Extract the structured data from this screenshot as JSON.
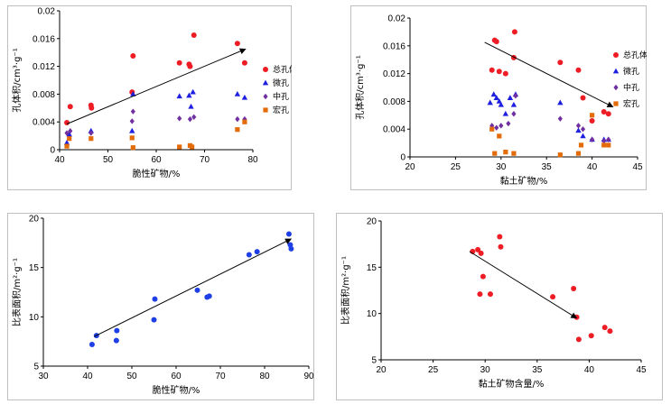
{
  "colors": {
    "total": "#ee1c24",
    "micro": "#1f1fe0",
    "meso": "#7030a0",
    "macro": "#e36c09",
    "ssa": "#1f3fe6",
    "ssa2": "#ee1c24",
    "frame": "#bfbfbf"
  },
  "chart_data": [
    {
      "id": "a",
      "type": "scatter",
      "xlabel": "脆性矿物/%",
      "ylabel": "孔体积/cm³·g⁻¹",
      "xlim": [
        40,
        80
      ],
      "ylim": [
        0,
        0.02
      ],
      "xticks": [
        "40",
        "50",
        "60",
        "70",
        "80"
      ],
      "yticks": [
        "0",
        "0.004",
        "0.008",
        "0.012",
        "0.016",
        "0.02"
      ],
      "legend": [
        "总孔体积",
        "微孔",
        "中孔",
        "宏孔"
      ],
      "series": [
        {
          "name": "总孔体积",
          "marker": "circle",
          "x": [
            41.5,
            42.2,
            46.5,
            46.6,
            55.0,
            55.2,
            64.8,
            66.8,
            67.0,
            67.8,
            76.8,
            78.3
          ],
          "y": [
            0.0039,
            0.0062,
            0.0064,
            0.006,
            0.0083,
            0.0135,
            0.0125,
            0.0123,
            0.012,
            0.0165,
            0.0153,
            0.0125
          ]
        },
        {
          "name": "微孔",
          "marker": "triangle",
          "x": [
            41.5,
            42.0,
            46.5,
            55.0,
            55.2,
            64.8,
            66.8,
            67.2,
            67.6,
            76.8,
            78.3
          ],
          "y": [
            0.001,
            0.0022,
            0.0027,
            0.0027,
            0.008,
            0.0077,
            0.0078,
            0.0062,
            0.0083,
            0.008,
            0.0075
          ]
        },
        {
          "name": "中孔",
          "marker": "diamond",
          "x": [
            41.5,
            42.2,
            46.5,
            55.0,
            55.2,
            64.8,
            67.0,
            67.8,
            76.8,
            78.3
          ],
          "y": [
            0.0024,
            0.0027,
            0.0024,
            0.0041,
            0.0055,
            0.0045,
            0.0044,
            0.0047,
            0.0044,
            0.0044
          ]
        },
        {
          "name": "宏孔",
          "marker": "square",
          "x": [
            41.5,
            42.0,
            46.5,
            55.0,
            55.2,
            64.8,
            67.0,
            67.4,
            76.8,
            78.3
          ],
          "y": [
            0.0005,
            0.0016,
            0.0016,
            0.0017,
            0.0003,
            0.0004,
            0.0006,
            0.0004,
            0.0029,
            0.004
          ]
        }
      ],
      "arrow": {
        "from": [
          41.5,
          0.0037
        ],
        "to": [
          78.5,
          0.0145
        ]
      }
    },
    {
      "id": "b",
      "type": "scatter",
      "xlabel": "黏土矿物/%",
      "ylabel": "孔体积/cm³·g⁻¹",
      "xlim": [
        20,
        45
      ],
      "ylim": [
        0,
        0.02
      ],
      "xticks": [
        "20",
        "25",
        "30",
        "35",
        "40",
        "45"
      ],
      "yticks": [
        "0",
        "0.004",
        "0.008",
        "0.012",
        "0.016",
        "0.02"
      ],
      "legend": [
        "总孔体积",
        "微孔",
        "中孔",
        "宏孔"
      ],
      "series": [
        {
          "name": "总孔体积",
          "marker": "circle",
          "x": [
            29.0,
            29.3,
            29.5,
            29.8,
            30.5,
            31.5,
            31.4,
            36.5,
            38.5,
            39.0,
            40.0,
            41.3,
            41.8
          ],
          "y": [
            0.0125,
            0.0168,
            0.0166,
            0.0123,
            0.012,
            0.018,
            0.0143,
            0.0136,
            0.0125,
            0.0085,
            0.0052,
            0.0065,
            0.0062
          ]
        },
        {
          "name": "微孔",
          "marker": "triangle",
          "x": [
            28.8,
            29.2,
            29.5,
            29.8,
            30.0,
            30.5,
            31.0,
            31.4,
            31.6,
            36.5,
            38.5,
            39.0,
            40.0,
            41.3,
            41.8
          ],
          "y": [
            0.0078,
            0.009,
            0.0085,
            0.008,
            0.0075,
            0.0062,
            0.0085,
            0.0075,
            0.009,
            0.0078,
            0.0038,
            0.003,
            0.0025,
            0.0025,
            0.0025
          ]
        },
        {
          "name": "中孔",
          "marker": "diamond",
          "x": [
            29.0,
            29.5,
            30.0,
            30.8,
            31.4,
            31.6,
            36.5,
            38.5,
            39.0,
            40.0,
            41.3,
            41.8
          ],
          "y": [
            0.0045,
            0.0042,
            0.0045,
            0.0048,
            0.0062,
            0.0088,
            0.0055,
            0.0045,
            0.004,
            0.0025,
            0.0023,
            0.0025
          ]
        },
        {
          "name": "宏孔",
          "marker": "square",
          "x": [
            29.0,
            29.3,
            29.8,
            30.5,
            31.4,
            36.5,
            38.5,
            38.8,
            40.0,
            41.3,
            41.8
          ],
          "y": [
            0.004,
            0.0005,
            0.003,
            0.0007,
            0.0005,
            0.0003,
            0.0005,
            0.0017,
            0.006,
            0.0017,
            0.0017
          ]
        }
      ],
      "arrow": {
        "from": [
          28.2,
          0.0165
        ],
        "to": [
          42.3,
          0.0072
        ]
      }
    },
    {
      "id": "c",
      "type": "scatter",
      "xlabel": "脆性矿物/%",
      "ylabel": "比表面积/m²·g⁻¹",
      "xlim": [
        30,
        90
      ],
      "ylim": [
        5,
        20
      ],
      "xticks": [
        "30",
        "40",
        "50",
        "60",
        "70",
        "80",
        "90"
      ],
      "yticks": [
        "5",
        "10",
        "15",
        "20"
      ],
      "legend": [],
      "series": [
        {
          "name": "比表面积",
          "marker": "circle",
          "x": [
            41.0,
            42.0,
            46.5,
            46.6,
            55.0,
            55.2,
            64.8,
            67.0,
            67.5,
            76.5,
            78.3,
            85.5,
            85.8,
            86.0
          ],
          "y": [
            7.2,
            8.1,
            7.6,
            8.6,
            9.7,
            11.8,
            12.7,
            12.0,
            12.1,
            16.3,
            16.6,
            18.4,
            17.3,
            16.9
          ]
        }
      ],
      "arrow": {
        "from": [
          41.5,
          8.0
        ],
        "to": [
          86.0,
          17.9
        ]
      }
    },
    {
      "id": "d",
      "type": "scatter",
      "xlabel": "黏土矿物含量/%",
      "ylabel": "比表面积/m²·g⁻¹",
      "xlim": [
        20,
        45
      ],
      "ylim": [
        5,
        20
      ],
      "xticks": [
        "20",
        "25",
        "30",
        "35",
        "40",
        "45"
      ],
      "yticks": [
        "5",
        "10",
        "15",
        "20"
      ],
      "legend": [],
      "series": [
        {
          "name": "比表面积",
          "marker": "circle",
          "x": [
            28.8,
            29.3,
            29.6,
            29.8,
            29.5,
            30.5,
            31.4,
            31.5,
            36.5,
            38.5,
            38.8,
            39.0,
            40.2,
            41.5,
            42.0
          ],
          "y": [
            16.7,
            16.9,
            16.5,
            14.0,
            12.1,
            12.1,
            18.3,
            17.2,
            11.8,
            12.7,
            9.6,
            7.2,
            7.6,
            8.5,
            8.1
          ]
        }
      ],
      "arrow": {
        "from": [
          28.5,
          16.7
        ],
        "to": [
          38.8,
          9.5
        ]
      }
    }
  ]
}
